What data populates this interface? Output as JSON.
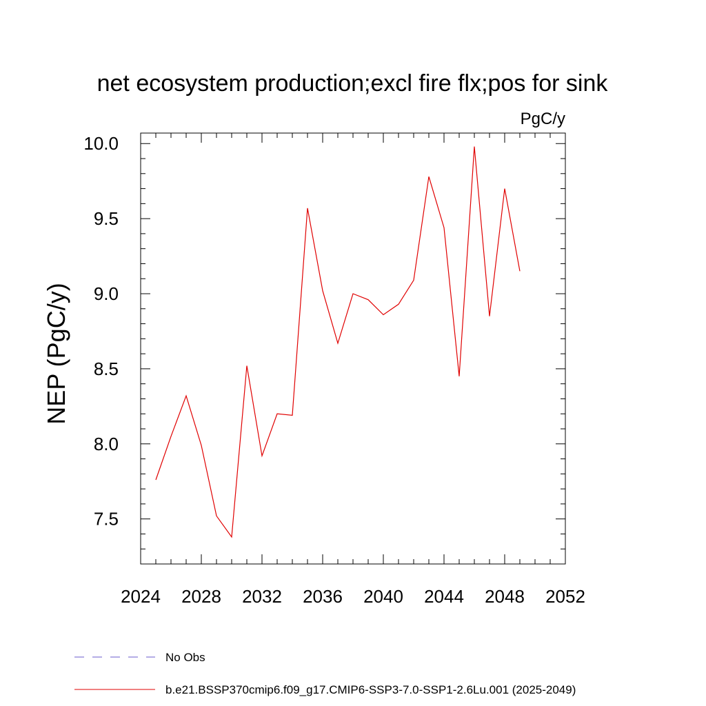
{
  "chart_data": {
    "type": "line",
    "title": "net ecosystem production;excl fire flx;pos for sink",
    "units": "PgC/y",
    "ylabel": "NEP  (PgC/y)",
    "xlabel": "",
    "xlim": [
      2024,
      2052
    ],
    "ylim": [
      7.2,
      10.07
    ],
    "x_ticks": [
      2024,
      2028,
      2032,
      2036,
      2040,
      2044,
      2048,
      2052
    ],
    "x_tick_labels": [
      "2024",
      "2028",
      "2032",
      "2036",
      "2040",
      "2044",
      "2048",
      "2052"
    ],
    "y_ticks": [
      7.5,
      8.0,
      8.5,
      9.0,
      9.5,
      10.0
    ],
    "y_tick_labels": [
      "7.5",
      "8.0",
      "8.5",
      "9.0",
      "9.5",
      "10.0"
    ],
    "grid": false,
    "legend_position": "bottom",
    "legend": [
      {
        "name": "No Obs",
        "color": "#6a5acd",
        "style": "dashed"
      },
      {
        "name": "b.e21.BSSP370cmip6.f09_g17.CMIP6-SSP3-7.0-SSP1-2.6Lu.001 (2025-2049)",
        "color": "#e00000",
        "style": "solid"
      }
    ],
    "series": [
      {
        "name": "b.e21.BSSP370cmip6.f09_g17.CMIP6-SSP3-7.0-SSP1-2.6Lu.001 (2025-2049)",
        "color": "#e00000",
        "x": [
          2025,
          2026,
          2027,
          2028,
          2029,
          2030,
          2031,
          2032,
          2033,
          2034,
          2035,
          2036,
          2037,
          2038,
          2039,
          2040,
          2041,
          2042,
          2043,
          2044,
          2045,
          2046,
          2047,
          2048,
          2049
        ],
        "values": [
          7.76,
          8.05,
          8.32,
          7.99,
          7.52,
          7.38,
          8.52,
          7.92,
          8.2,
          8.19,
          9.57,
          9.02,
          8.67,
          9.0,
          8.96,
          8.86,
          8.93,
          9.09,
          9.78,
          9.44,
          8.45,
          9.98,
          8.85,
          9.7,
          9.15
        ]
      }
    ]
  }
}
